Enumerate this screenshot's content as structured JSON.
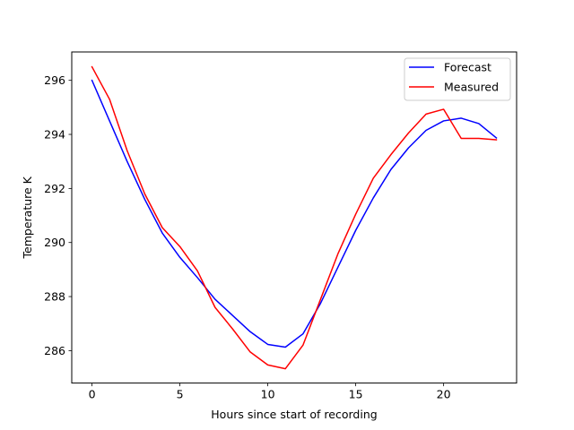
{
  "chart_data": {
    "type": "line",
    "title": "",
    "xlabel": "Hours since start of recording",
    "ylabel": "Temperature K",
    "xlim": [
      -1.15,
      24.15
    ],
    "ylim": [
      284.8,
      297.05
    ],
    "xticks": [
      0,
      5,
      10,
      15,
      20
    ],
    "yticks": [
      286,
      288,
      290,
      292,
      294,
      296
    ],
    "legend_position": "top-right",
    "grid": false,
    "x": [
      0,
      1,
      2,
      3,
      4,
      5,
      6,
      7,
      8,
      9,
      10,
      11,
      12,
      13,
      14,
      15,
      16,
      17,
      18,
      19,
      20,
      21,
      22,
      23
    ],
    "series": [
      {
        "name": "Forecast",
        "color": "#0000ff",
        "values": [
          296.0,
          294.5,
          293.0,
          291.6,
          290.35,
          289.45,
          288.7,
          287.9,
          287.3,
          286.7,
          286.23,
          286.13,
          286.62,
          287.75,
          289.1,
          290.45,
          291.65,
          292.7,
          293.5,
          294.15,
          294.5,
          294.6,
          294.4,
          293.87
        ]
      },
      {
        "name": "Measured",
        "color": "#ff0000",
        "values": [
          296.5,
          295.3,
          293.4,
          291.8,
          290.55,
          289.85,
          288.95,
          287.6,
          286.8,
          285.95,
          285.47,
          285.33,
          286.2,
          287.9,
          289.6,
          291.05,
          292.38,
          293.25,
          294.05,
          294.75,
          294.93,
          293.85,
          293.85,
          293.8
        ]
      }
    ]
  }
}
